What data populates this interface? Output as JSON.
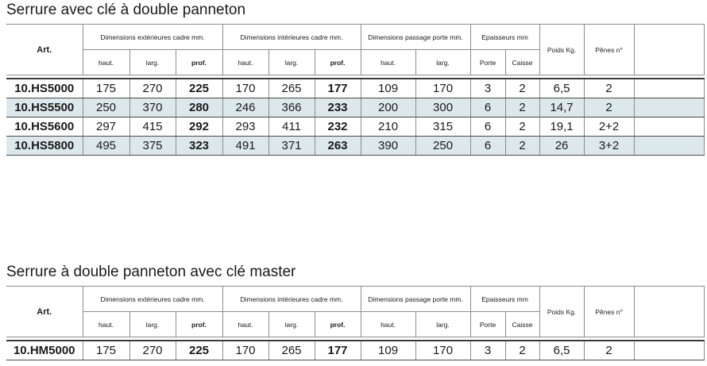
{
  "tables": [
    {
      "title": "Serrure avec clé à double panneton",
      "headers": {
        "art": "Art.",
        "groups": {
          "ext": "Dimensions extérieures cadre mm.",
          "int": "Dimensions intérieures cadre mm.",
          "pass": "Dimensions passage porte mm.",
          "ep": "Epaisseurs mm",
          "poids": "Poids Kg.",
          "penes": "Pênes n°"
        },
        "sub": {
          "haut": "haut.",
          "larg": "larg.",
          "prof": "prof.",
          "porte": "Porte",
          "caisse": "Caisse"
        }
      },
      "rows": [
        {
          "art": "10.HS5000",
          "ext_h": "175",
          "ext_l": "270",
          "ext_p": "225",
          "int_h": "170",
          "int_l": "265",
          "int_p": "177",
          "pass_h": "109",
          "pass_l": "170",
          "porte": "3",
          "caisse": "2",
          "poids": "6,5",
          "penes": "2"
        },
        {
          "art": "10.HS5500",
          "ext_h": "250",
          "ext_l": "370",
          "ext_p": "280",
          "int_h": "246",
          "int_l": "366",
          "int_p": "233",
          "pass_h": "200",
          "pass_l": "300",
          "porte": "6",
          "caisse": "2",
          "poids": "14,7",
          "penes": "2"
        },
        {
          "art": "10.HS5600",
          "ext_h": "297",
          "ext_l": "415",
          "ext_p": "292",
          "int_h": "293",
          "int_l": "411",
          "int_p": "232",
          "pass_h": "210",
          "pass_l": "315",
          "porte": "6",
          "caisse": "2",
          "poids": "19,1",
          "penes": "2+2"
        },
        {
          "art": "10.HS5800",
          "ext_h": "495",
          "ext_l": "375",
          "ext_p": "323",
          "int_h": "491",
          "int_l": "371",
          "int_p": "263",
          "pass_h": "390",
          "pass_l": "250",
          "porte": "6",
          "caisse": "2",
          "poids": "26",
          "penes": "3+2"
        }
      ]
    },
    {
      "title": "Serrure à double panneton avec clé master",
      "headers": {
        "art": "Art.",
        "groups": {
          "ext": "Dimensions extérieures cadre mm.",
          "int": "Dimensions intérieures cadre mm.",
          "pass": "Dimensions passage porte mm.",
          "ep": "Epaisseurs mm",
          "poids": "Poids Kg.",
          "penes": "Pênes n°"
        },
        "sub": {
          "haut": "haut.",
          "larg": "larg.",
          "prof": "prof.",
          "porte": "Porte",
          "caisse": "Caisse"
        }
      },
      "rows": [
        {
          "art": "10.HM5000",
          "ext_h": "175",
          "ext_l": "270",
          "ext_p": "225",
          "int_h": "170",
          "int_l": "265",
          "int_p": "177",
          "pass_h": "109",
          "pass_l": "170",
          "porte": "3",
          "caisse": "2",
          "poids": "6,5",
          "penes": "2"
        }
      ]
    }
  ]
}
